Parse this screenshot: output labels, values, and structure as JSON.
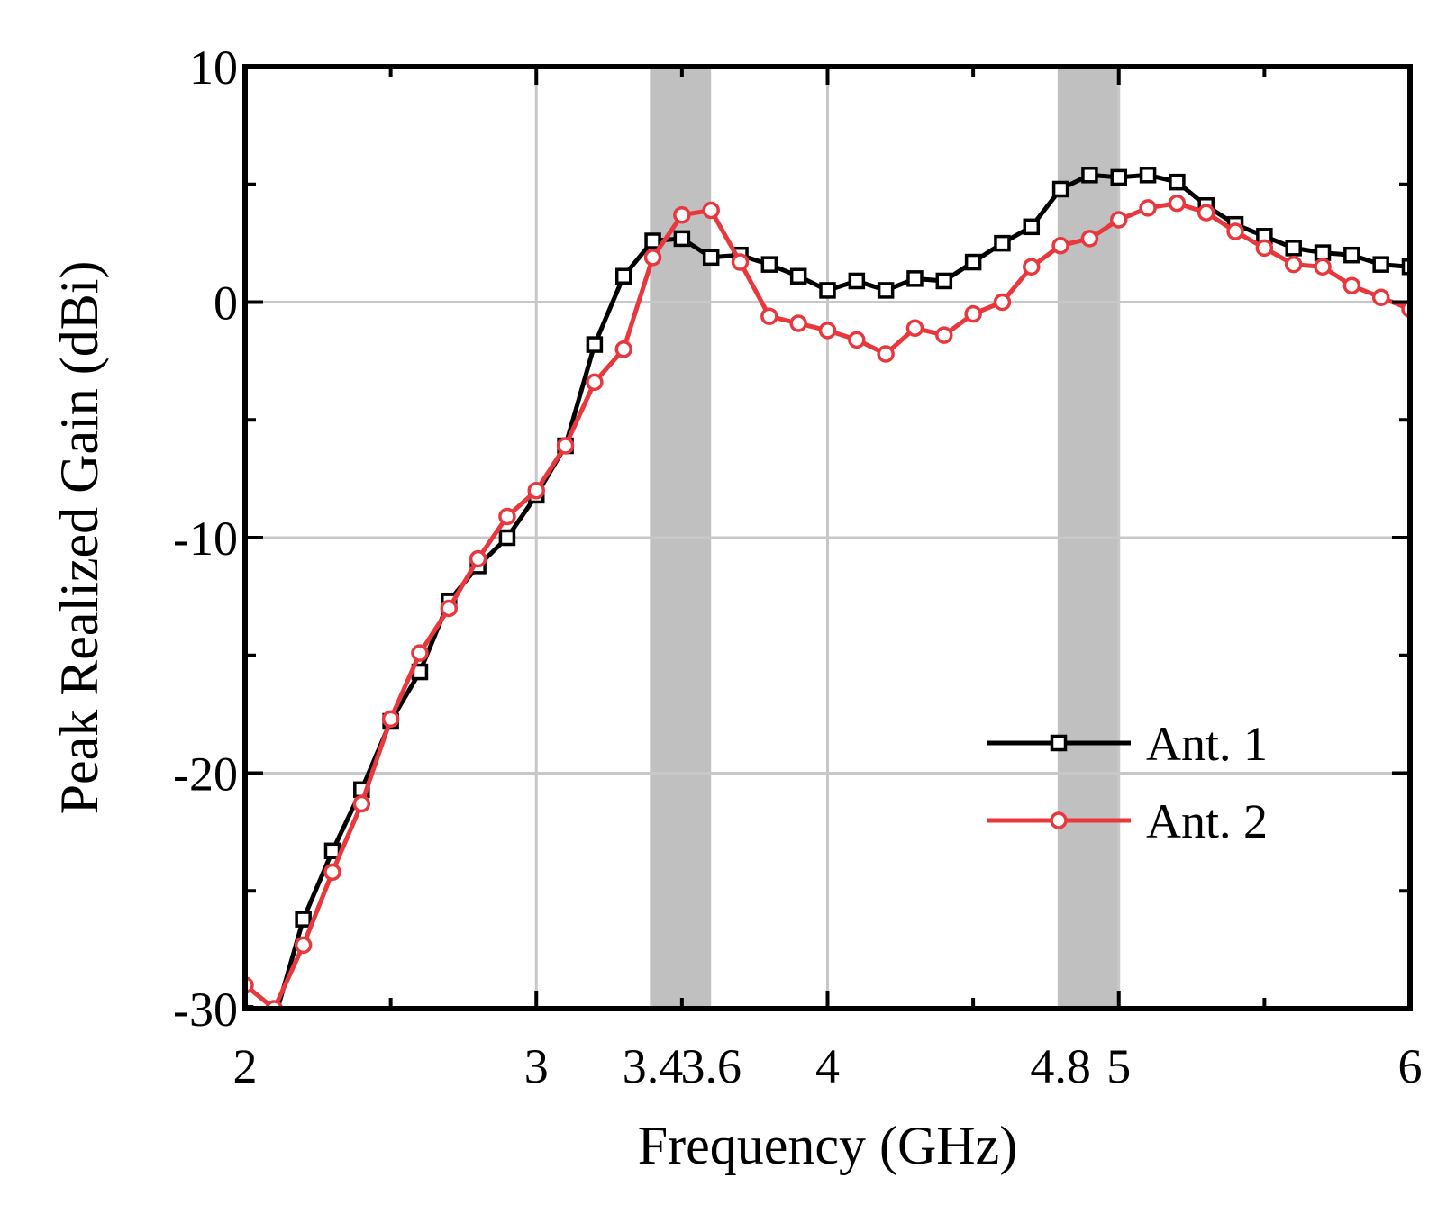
{
  "chart_data": {
    "type": "line",
    "xlabel": "Frequency (GHz)",
    "ylabel": "Peak Realized Gain (dBi)",
    "xlim": [
      2,
      6
    ],
    "ylim": [
      -30,
      10
    ],
    "grid": true,
    "xticks": [
      2,
      3,
      3.4,
      3.6,
      4,
      4.8,
      5,
      6
    ],
    "xtick_labels": [
      "2",
      "3",
      "3.4",
      "3.6",
      "4",
      "4.8",
      "5",
      "6"
    ],
    "yticks": [
      -30,
      -20,
      -10,
      0,
      10
    ],
    "ytick_labels": [
      "-30",
      "-20",
      "-10",
      "0",
      "10"
    ],
    "shaded_bands": [
      [
        3.39,
        3.6
      ],
      [
        4.79,
        5.0
      ]
    ],
    "legend_position": "right",
    "series": [
      {
        "name": "Ant. 1",
        "color": "#000000",
        "marker": "square",
        "x": [
          2.0,
          2.1,
          2.2,
          2.3,
          2.4,
          2.5,
          2.6,
          2.7,
          2.8,
          2.9,
          3.0,
          3.1,
          3.2,
          3.3,
          3.4,
          3.5,
          3.6,
          3.7,
          3.8,
          3.9,
          4.0,
          4.1,
          4.2,
          4.3,
          4.4,
          4.5,
          4.6,
          4.7,
          4.8,
          4.9,
          5.0,
          5.1,
          5.2,
          5.3,
          5.4,
          5.5,
          5.6,
          5.7,
          5.8,
          5.9,
          6.0
        ],
        "y": [
          -30.2,
          -30.5,
          -26.2,
          -23.3,
          -20.7,
          -17.8,
          -15.7,
          -12.7,
          -11.2,
          -10.0,
          -8.2,
          -6.1,
          -1.8,
          1.1,
          2.6,
          2.7,
          1.9,
          2.0,
          1.6,
          1.1,
          0.5,
          0.9,
          0.5,
          1.0,
          0.9,
          1.7,
          2.5,
          3.2,
          4.8,
          5.4,
          5.3,
          5.4,
          5.1,
          4.1,
          3.3,
          2.8,
          2.3,
          2.1,
          2.0,
          1.6,
          1.5
        ]
      },
      {
        "name": "Ant. 2",
        "color": "#e8383d",
        "marker": "circle",
        "x": [
          2.0,
          2.1,
          2.2,
          2.3,
          2.4,
          2.5,
          2.6,
          2.7,
          2.8,
          2.9,
          3.0,
          3.1,
          3.2,
          3.3,
          3.4,
          3.5,
          3.6,
          3.7,
          3.8,
          3.9,
          4.0,
          4.1,
          4.2,
          4.3,
          4.4,
          4.5,
          4.6,
          4.7,
          4.8,
          4.9,
          5.0,
          5.1,
          5.2,
          5.3,
          5.4,
          5.5,
          5.6,
          5.7,
          5.8,
          5.9,
          6.0
        ],
        "y": [
          -29.0,
          -30.0,
          -27.3,
          -24.2,
          -21.3,
          -17.7,
          -14.9,
          -13.0,
          -10.9,
          -9.1,
          -8.0,
          -6.1,
          -3.4,
          -2.0,
          1.9,
          3.7,
          3.9,
          1.7,
          -0.6,
          -0.9,
          -1.2,
          -1.6,
          -2.2,
          -1.1,
          -1.4,
          -0.5,
          0.0,
          1.5,
          2.4,
          2.7,
          3.5,
          4.0,
          4.2,
          3.8,
          3.0,
          2.3,
          1.6,
          1.5,
          0.7,
          0.2,
          -0.3
        ]
      }
    ]
  }
}
